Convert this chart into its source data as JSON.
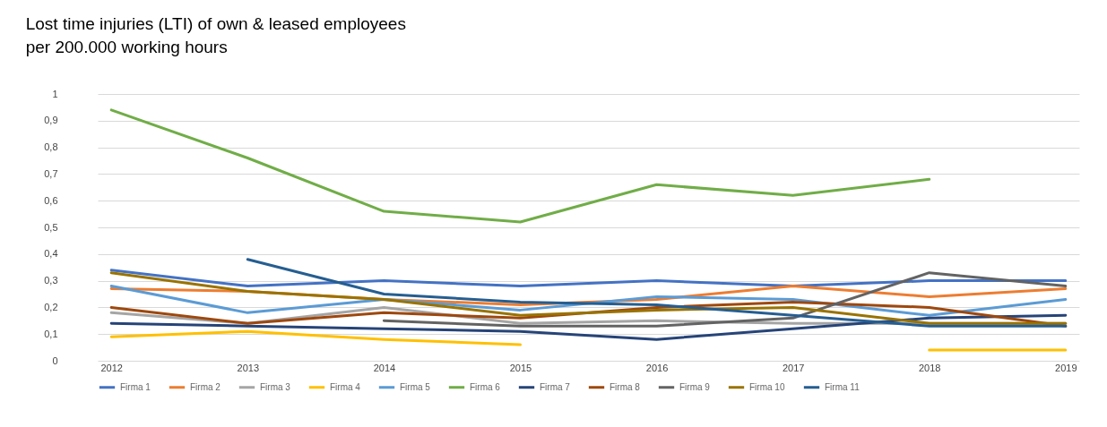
{
  "chart_data": {
    "type": "line",
    "title": "Lost time injuries (LTI) of own & leased employees\nper 200.000 working hours",
    "categories": [
      "2012",
      "2013",
      "2014",
      "2015",
      "2016",
      "2017",
      "2018",
      "2019"
    ],
    "ylim": [
      0,
      1
    ],
    "yticks": [
      0,
      {
        "value": 0.1,
        "label": "0,1"
      },
      {
        "value": 0.2,
        "label": "0,2"
      },
      {
        "value": 0.3,
        "label": "0,3"
      },
      {
        "value": 0.4,
        "label": "0,4"
      },
      {
        "value": 0.5,
        "label": "0,5"
      },
      {
        "value": 0.6,
        "label": "0,6"
      },
      {
        "value": 0.7,
        "label": "0,7"
      },
      {
        "value": 0.8,
        "label": "0,8"
      },
      {
        "value": 0.9,
        "label": "0,9"
      },
      1
    ],
    "grid": "y",
    "legend": "bottom",
    "series": [
      {
        "name": "Firma 1",
        "color": "#4472c4",
        "values": [
          0.34,
          0.28,
          0.3,
          0.28,
          0.3,
          0.28,
          0.3,
          0.3
        ]
      },
      {
        "name": "Firma 2",
        "color": "#ed7d31",
        "values": [
          0.27,
          0.26,
          0.23,
          0.21,
          0.23,
          0.28,
          0.24,
          0.27
        ]
      },
      {
        "name": "Firma 3",
        "color": "#a5a5a5",
        "values": [
          0.18,
          0.14,
          0.2,
          0.14,
          0.15,
          0.14,
          0.14,
          0.14
        ]
      },
      {
        "name": "Firma 4",
        "color": "#ffc000",
        "values": [
          0.09,
          0.11,
          0.08,
          0.06,
          null,
          null,
          0.04,
          0.04
        ]
      },
      {
        "name": "Firma 5",
        "color": "#5b9bd5",
        "values": [
          0.28,
          0.18,
          0.23,
          0.19,
          0.24,
          0.23,
          0.17,
          0.23
        ]
      },
      {
        "name": "Firma 6",
        "color": "#70ad47",
        "values": [
          0.94,
          0.76,
          0.56,
          0.52,
          0.66,
          0.62,
          0.68,
          null
        ]
      },
      {
        "name": "Firma 7",
        "color": "#264478",
        "values": [
          0.14,
          0.13,
          0.12,
          0.11,
          0.08,
          0.12,
          0.16,
          0.17
        ]
      },
      {
        "name": "Firma 8",
        "color": "#9e480e",
        "values": [
          0.2,
          0.14,
          0.18,
          0.16,
          0.2,
          0.22,
          0.2,
          0.13
        ]
      },
      {
        "name": "Firma 9",
        "color": "#636363",
        "values": [
          null,
          null,
          0.15,
          0.13,
          0.13,
          0.16,
          0.33,
          0.28
        ]
      },
      {
        "name": "Firma 10",
        "color": "#997300",
        "values": [
          0.33,
          0.26,
          0.23,
          0.17,
          0.19,
          0.2,
          0.14,
          0.14
        ]
      },
      {
        "name": "Firma 11",
        "color": "#255e91",
        "values": [
          null,
          0.38,
          0.25,
          0.22,
          0.21,
          0.17,
          0.13,
          0.13
        ]
      }
    ]
  }
}
